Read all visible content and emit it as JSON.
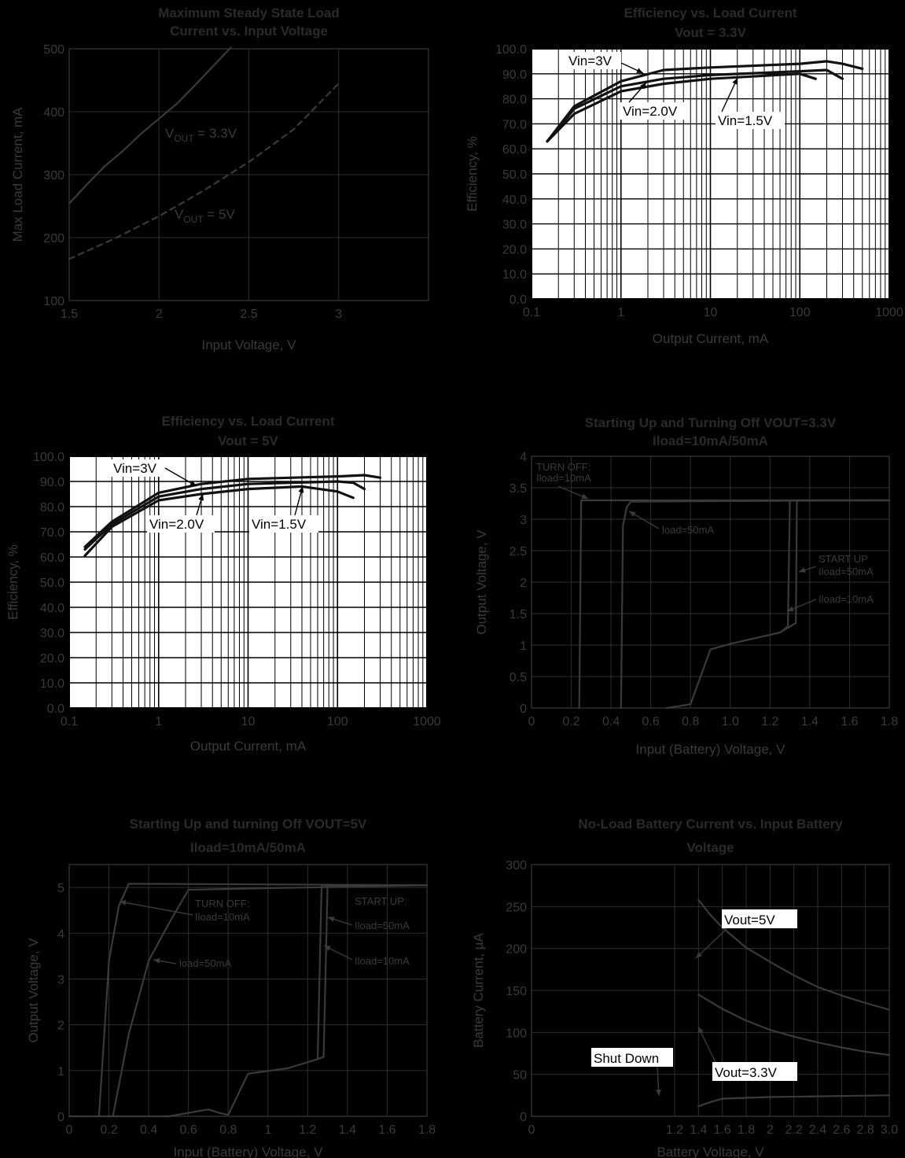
{
  "chart_data": [
    {
      "type": "line",
      "title": "Maximum Steady State Load Current vs. Input Voltage",
      "title_lines": [
        "Maximum Steady State Load",
        "Current vs. Input Voltage"
      ],
      "xlabel": "Input Voltage, V",
      "ylabel": "Max Load Current, mA",
      "xlim": [
        1.5,
        3.5
      ],
      "ylim": [
        100,
        500
      ],
      "xticks": [
        1.5,
        2,
        2.5,
        3
      ],
      "xtick_labels": [
        "1.5",
        "2",
        "2.5",
        "3"
      ],
      "yticks": [
        100,
        200,
        300,
        400,
        500
      ],
      "ytick_labels": [
        "100",
        "200",
        "300",
        "400",
        "500"
      ],
      "grid": true,
      "theme": "dark",
      "series": [
        {
          "name": "VOUT = 3.3V",
          "style": "solid",
          "x": [
            1.5,
            1.6,
            1.7,
            1.8,
            1.9,
            2.0,
            2.1,
            2.2,
            2.3,
            2.4
          ],
          "y": [
            254,
            285,
            314,
            338,
            365,
            389,
            413,
            442,
            472,
            502
          ]
        },
        {
          "name": "VOUT = 5V",
          "style": "dashed",
          "x": [
            1.5,
            1.75,
            2.0,
            2.25,
            2.5,
            2.75,
            3.0
          ],
          "y": [
            166,
            198,
            234,
            275,
            320,
            372,
            445
          ]
        }
      ],
      "annotations": [
        {
          "text": "VOUT = 3.3V",
          "main": "V",
          "sub": "OUT",
          "rest": " = 3.3V"
        },
        {
          "text": "VOUT = 5V",
          "main": "V",
          "sub": "OUT",
          "rest": " = 5V"
        }
      ]
    },
    {
      "type": "line",
      "title": "Efficiency vs. Load Current Vout = 3.3V",
      "title_lines": [
        "Efficiency vs. Load Current",
        "Vout = 3.3V"
      ],
      "xlabel": "Output Current, mA",
      "ylabel": "Efficiency, %",
      "xscale": "log",
      "xlim": [
        0.1,
        1000
      ],
      "ylim": [
        0,
        100
      ],
      "xticks": [
        0.1,
        1,
        10,
        100,
        1000
      ],
      "xtick_labels": [
        "0.1",
        "1",
        "10",
        "100",
        "1000"
      ],
      "yticks": [
        0,
        10,
        20,
        30,
        40,
        50,
        60,
        70,
        80,
        90,
        100
      ],
      "ytick_labels": [
        "0.0",
        "10.0",
        "20.0",
        "30.0",
        "40.0",
        "50.0",
        "60.0",
        "70.0",
        "80.0",
        "90.0",
        "100.0"
      ],
      "grid": true,
      "theme": "light",
      "series": [
        {
          "name": "Vin=3V",
          "x": [
            0.15,
            0.3,
            1,
            3,
            10,
            100,
            200,
            300,
            500
          ],
          "y": [
            63,
            77,
            87,
            91.5,
            92.5,
            94,
            95,
            94,
            92
          ]
        },
        {
          "name": "Vin=2.0V",
          "x": [
            0.15,
            0.3,
            1,
            3,
            10,
            100,
            200,
            300
          ],
          "y": [
            63,
            76,
            85,
            88,
            89.5,
            91,
            91.5,
            88
          ]
        },
        {
          "name": "Vin=1.5V",
          "x": [
            0.15,
            0.3,
            1,
            3,
            10,
            100,
            150
          ],
          "y": [
            63,
            74,
            83,
            86,
            88,
            90,
            88
          ]
        }
      ],
      "annotations": [
        {
          "text": "Vin=3V"
        },
        {
          "text": "Vin=2.0V"
        },
        {
          "text": "Vin=1.5V"
        }
      ]
    },
    {
      "type": "line",
      "title": "Efficiency vs. Load Current Vout = 5V",
      "title_lines": [
        "Efficiency vs. Load Current",
        "Vout = 5V"
      ],
      "xlabel": "Output Current, mA",
      "ylabel": "Efficiency, %",
      "xscale": "log",
      "xlim": [
        0.1,
        1000
      ],
      "ylim": [
        0,
        100
      ],
      "xticks": [
        0.1,
        1,
        10,
        100,
        1000
      ],
      "xtick_labels": [
        "0.1",
        "1",
        "10",
        "100",
        "1000"
      ],
      "yticks": [
        0,
        10,
        20,
        30,
        40,
        50,
        60,
        70,
        80,
        90,
        100
      ],
      "ytick_labels": [
        "0.0",
        "10.0",
        "20.0",
        "30.0",
        "40.0",
        "50.0",
        "60.0",
        "70.0",
        "80.0",
        "90.0",
        "100.0"
      ],
      "grid": true,
      "theme": "light",
      "series": [
        {
          "name": "Vin=3V",
          "x": [
            0.15,
            0.3,
            1,
            3,
            10,
            100,
            200,
            300
          ],
          "y": [
            64,
            74,
            85.5,
            89,
            91,
            92,
            92.5,
            91.5
          ]
        },
        {
          "name": "Vin=2.0V",
          "x": [
            0.15,
            0.3,
            1,
            3,
            10,
            100,
            150,
            200
          ],
          "y": [
            63,
            73,
            84,
            87,
            89,
            90,
            89.5,
            87
          ]
        },
        {
          "name": "Vin=1.5V",
          "x": [
            0.15,
            0.3,
            1,
            3,
            10,
            40,
            100,
            150
          ],
          "y": [
            60.5,
            72,
            82.5,
            85,
            87,
            88,
            86,
            83.5
          ]
        }
      ],
      "annotations": [
        {
          "text": "Vin=3V"
        },
        {
          "text": "Vin=2.0V"
        },
        {
          "text": "Vin=1.5V"
        }
      ]
    },
    {
      "type": "line",
      "title": "Starting Up and Turning Off VOUT=3.3V Iload=10mA/50mA",
      "title_lines": [
        "Starting Up and Turning Off VOUT=3.3V",
        "Iload=10mA/50mA"
      ],
      "xlabel": "Input (Battery) Voltage, V",
      "ylabel": "Output Voltage, V",
      "xlim": [
        0,
        1.8
      ],
      "ylim": [
        0,
        4
      ],
      "xticks": [
        0,
        0.2,
        0.4,
        0.6,
        0.8,
        1.0,
        1.2,
        1.4,
        1.6,
        1.8
      ],
      "xtick_labels": [
        "0",
        "0.2",
        "0.4",
        "0.6",
        "0.8",
        "1.0",
        "1.2",
        "1.4",
        "1.6",
        "1.8"
      ],
      "yticks": [
        0,
        0.5,
        1,
        1.5,
        2,
        2.5,
        3,
        3.5,
        4
      ],
      "ytick_labels": [
        "0",
        "0.5",
        "1",
        "1.5",
        "2",
        "2.5",
        "3",
        "3.5",
        "4"
      ],
      "grid": true,
      "theme": "dark",
      "series": [
        {
          "name": "TURN OFF: Iload=10mA",
          "x": [
            0.24,
            0.25,
            1.8
          ],
          "y": [
            0,
            3.3,
            3.3
          ]
        },
        {
          "name": "load=50mA",
          "x": [
            0.45,
            0.46,
            0.48,
            0.5,
            1.8
          ],
          "y": [
            0,
            2.9,
            3.2,
            3.28,
            3.3
          ]
        },
        {
          "name": "START UP Iload=50mA",
          "x": [
            0.68,
            0.8,
            0.9,
            1.0,
            1.25,
            1.33,
            1.335,
            1.8
          ],
          "y": [
            0,
            0.06,
            0.93,
            1.02,
            1.2,
            1.35,
            3.3,
            3.3
          ]
        },
        {
          "name": "Iload=10mA",
          "x": [
            1.26,
            1.29,
            1.3,
            1.8
          ],
          "y": [
            1.22,
            1.3,
            3.3,
            3.3
          ]
        }
      ],
      "annotations": [
        {
          "text": "TURN OFF:"
        },
        {
          "text": "Iload=10mA"
        },
        {
          "text": "load=50mA"
        },
        {
          "text": "START UP"
        },
        {
          "text": "Iload=50mA"
        },
        {
          "text": "Iload=10mA"
        }
      ]
    },
    {
      "type": "line",
      "title": "Starting Up and turning Off VOUT=5V Iload=10mA/50mA",
      "title_lines": [
        "Starting Up and turning Off VOUT=5V",
        "Iload=10mA/50mA"
      ],
      "xlabel": "Input (Battery) Voltage, V",
      "ylabel": "Output Voltage, V",
      "xlim": [
        0,
        1.8
      ],
      "ylim": [
        0,
        5.5
      ],
      "xticks": [
        0,
        0.2,
        0.4,
        0.6,
        0.8,
        1,
        1.2,
        1.4,
        1.6,
        1.8
      ],
      "xtick_labels": [
        "0",
        "0.2",
        "0.4",
        "0.6",
        "0.8",
        "1",
        "1.2",
        "1.4",
        "1.6",
        "1.8"
      ],
      "yticks": [
        0,
        1,
        2,
        3,
        4,
        5
      ],
      "ytick_labels": [
        "0",
        "1",
        "2",
        "3",
        "4",
        "5"
      ],
      "grid": true,
      "theme": "dark",
      "series": [
        {
          "name": "TURN OFF: Iload=10mA",
          "x": [
            0.15,
            0.2,
            0.25,
            0.3,
            1.8
          ],
          "y": [
            0,
            3.4,
            4.6,
            5.08,
            5.05
          ]
        },
        {
          "name": "load=50mA",
          "x": [
            0.22,
            0.3,
            0.4,
            0.5,
            0.6,
            1.8
          ],
          "y": [
            0,
            1.8,
            3.4,
            4.2,
            4.95,
            5.05
          ]
        },
        {
          "name": "START UP: Iload=50mA",
          "x": [
            0,
            0.5,
            0.7,
            0.75,
            0.8,
            0.9,
            1.1,
            1.25,
            1.27,
            1.8
          ],
          "y": [
            0,
            0,
            0.15,
            0.08,
            0.03,
            0.93,
            1.05,
            1.25,
            5.05,
            5.05
          ]
        },
        {
          "name": "Iload=10mA",
          "x": [
            1.25,
            1.28,
            1.3,
            1.8
          ],
          "y": [
            1.25,
            1.3,
            5.05,
            5.05
          ]
        }
      ],
      "annotations": [
        {
          "text": "TURN OFF:"
        },
        {
          "text": "Iload=10mA"
        },
        {
          "text": "load=50mA"
        },
        {
          "text": "START UP:"
        },
        {
          "text": "Iload=50mA"
        },
        {
          "text": "Iload=10mA"
        }
      ]
    },
    {
      "type": "line",
      "title": "No-Load Battery Current vs. Input Battery Voltage",
      "title_lines": [
        "No-Load Battery Current vs. Input Battery",
        "Voltage"
      ],
      "xlabel": "Battery Voltage, V",
      "ylabel": "Battery Current, µA",
      "xlim": [
        0,
        3.0
      ],
      "ylim": [
        0,
        300
      ],
      "xticks": [
        0,
        1.2,
        1.4,
        1.6,
        1.8,
        2,
        2.2,
        2.4,
        2.6,
        2.8,
        3.0
      ],
      "xtick_labels": [
        "0",
        "1.2",
        "1.4",
        "1.6",
        "1.8",
        "2",
        "2.2",
        "2.4",
        "2.6",
        "2.8",
        "3.0"
      ],
      "yticks": [
        0,
        50,
        100,
        150,
        200,
        250,
        300
      ],
      "ytick_labels": [
        "0",
        "50",
        "100",
        "150",
        "200",
        "250",
        "300"
      ],
      "grid": true,
      "theme": "dark",
      "series": [
        {
          "name": "Vout=5V",
          "x": [
            1.4,
            1.5,
            1.6,
            1.8,
            2.0,
            2.2,
            2.4,
            2.6,
            2.8,
            3.0
          ],
          "y": [
            258,
            240,
            225,
            201,
            184,
            168,
            154,
            144,
            135,
            127
          ]
        },
        {
          "name": "Vout=3.3V",
          "x": [
            1.4,
            1.6,
            1.8,
            2.0,
            2.2,
            2.4,
            2.6,
            2.8,
            3.0
          ],
          "y": [
            145,
            128,
            114,
            103,
            95,
            88,
            82,
            77,
            73
          ]
        },
        {
          "name": "Shut Down",
          "x": [
            1.4,
            1.5,
            1.6,
            1.8,
            2.0,
            2.5,
            3.0
          ],
          "y": [
            12,
            17,
            21,
            22,
            23,
            24,
            25
          ]
        }
      ],
      "annotations": [
        {
          "text": "Vout=5V"
        },
        {
          "text": "Vout=3.3V"
        },
        {
          "text": "Shut Down"
        }
      ]
    }
  ]
}
